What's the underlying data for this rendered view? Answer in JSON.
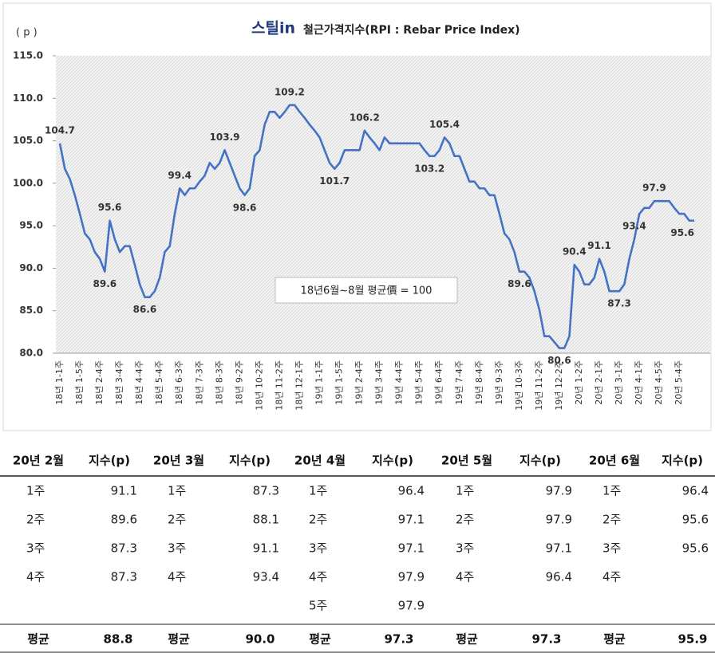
{
  "chart_data": {
    "type": "line",
    "logo": "스틸in",
    "title": "철근가격지수(RPI : Rebar Price Index)",
    "y_label": "( p )",
    "annotation": "18년6월~8월 평균價 = 100",
    "color": "#4472c4",
    "ylim": [
      80,
      115
    ],
    "yticks": [
      {
        "value": 80,
        "label": "80.0"
      },
      {
        "value": 85,
        "label": "85.0"
      },
      {
        "value": 90,
        "label": "90.0"
      },
      {
        "value": 95,
        "label": "95.0"
      },
      {
        "value": 100,
        "label": "100.0"
      },
      {
        "value": 105,
        "label": "105.0"
      },
      {
        "value": 110,
        "label": "110.0"
      },
      {
        "value": 115,
        "label": "115.0"
      }
    ],
    "categories": [
      "18년 1-1주",
      null,
      null,
      null,
      "18년 1-5주",
      null,
      null,
      null,
      "18년 2-4주",
      null,
      null,
      null,
      "18년 3-4주",
      null,
      null,
      null,
      "18년 4-4주",
      null,
      null,
      null,
      "18년 5-4주",
      null,
      null,
      null,
      "18년 6-3주",
      null,
      null,
      null,
      "18년 7-3주",
      null,
      null,
      null,
      "18년 8-3주",
      null,
      null,
      null,
      "18년 9-2주",
      null,
      null,
      null,
      "18년 10-2주",
      null,
      null,
      null,
      "18년 11-2주",
      null,
      null,
      null,
      "18년 12-1주",
      null,
      null,
      null,
      "19년 1-1주",
      null,
      null,
      null,
      "19년 1-5주",
      null,
      null,
      null,
      "19년 2-4주",
      null,
      null,
      null,
      "19년 3-4주",
      null,
      null,
      null,
      "19년 4-4주",
      null,
      null,
      null,
      "19년 5-4주",
      null,
      null,
      null,
      "19년 6-4주",
      null,
      null,
      null,
      "19년 7-4주",
      null,
      null,
      null,
      "19년 8-4주",
      null,
      null,
      null,
      "19년 9-3주",
      null,
      null,
      null,
      "19년 10-3주",
      null,
      null,
      null,
      "19년 11-2주",
      null,
      null,
      null,
      "19년 12-2주",
      null,
      null,
      null,
      "20년 1-2주",
      null,
      null,
      null,
      "20년 2-1주",
      null,
      null,
      null,
      "20년 3-1주",
      null,
      null,
      null,
      "20년 4-1주",
      null,
      null,
      null,
      "20년 4-5주",
      null,
      null,
      null,
      "20년 5-4주",
      null,
      null,
      null
    ],
    "values": [
      104.7,
      101.7,
      100.5,
      98.6,
      96.4,
      94.1,
      93.4,
      91.9,
      91.1,
      89.6,
      95.6,
      93.4,
      91.9,
      92.6,
      92.6,
      90.4,
      88.1,
      86.6,
      86.6,
      87.3,
      88.9,
      91.9,
      92.6,
      96.4,
      99.4,
      98.6,
      99.4,
      99.4,
      100.2,
      100.9,
      102.4,
      101.7,
      102.4,
      103.9,
      102.4,
      100.9,
      99.4,
      98.6,
      99.4,
      103.2,
      103.9,
      106.9,
      108.4,
      108.4,
      107.7,
      108.4,
      109.2,
      109.2,
      108.4,
      107.7,
      106.9,
      106.2,
      105.4,
      103.9,
      102.4,
      101.7,
      102.4,
      103.9,
      103.9,
      103.9,
      103.9,
      106.2,
      105.4,
      104.7,
      103.9,
      105.4,
      104.7,
      104.7,
      104.7,
      104.7,
      104.7,
      104.7,
      104.7,
      103.9,
      103.2,
      103.2,
      103.9,
      105.4,
      104.7,
      103.2,
      103.2,
      101.7,
      100.2,
      100.2,
      99.4,
      99.4,
      98.6,
      98.6,
      96.4,
      94.1,
      93.4,
      91.9,
      89.6,
      89.6,
      88.9,
      87.3,
      85.1,
      82.0,
      82.0,
      81.3,
      80.6,
      80.6,
      82.0,
      90.4,
      89.6,
      88.1,
      88.1,
      88.9,
      91.1,
      89.6,
      87.3,
      87.3,
      87.3,
      88.1,
      91.1,
      93.4,
      96.4,
      97.1,
      97.1,
      97.9,
      97.9,
      97.9,
      97.9,
      97.1,
      96.4,
      96.4,
      95.6,
      95.6
    ],
    "value_labels": [
      "104.7",
      null,
      null,
      null,
      null,
      null,
      null,
      null,
      null,
      "89.6",
      "95.6",
      null,
      null,
      null,
      null,
      null,
      null,
      "86.6",
      null,
      null,
      null,
      null,
      null,
      null,
      "99.4",
      null,
      null,
      null,
      null,
      null,
      null,
      null,
      null,
      "103.9",
      null,
      null,
      null,
      "98.6",
      null,
      null,
      null,
      null,
      null,
      null,
      null,
      null,
      "109.2",
      null,
      null,
      null,
      null,
      null,
      null,
      null,
      null,
      "101.7",
      null,
      null,
      null,
      null,
      null,
      "106.2",
      null,
      null,
      null,
      null,
      null,
      null,
      null,
      null,
      null,
      null,
      null,
      null,
      "103.2",
      null,
      null,
      "105.4",
      null,
      null,
      null,
      null,
      null,
      null,
      null,
      null,
      null,
      null,
      null,
      null,
      null,
      null,
      "89.6",
      null,
      null,
      null,
      null,
      null,
      null,
      null,
      "80.6",
      null,
      null,
      "90.4",
      null,
      null,
      null,
      null,
      "91.1",
      null,
      null,
      null,
      "87.3",
      null,
      null,
      "93.4",
      null,
      null,
      null,
      "97.9",
      null,
      null,
      null,
      null,
      null,
      null,
      null,
      "95.6"
    ]
  },
  "table": {
    "columns": [
      "20년 2월",
      "지수(p)",
      "20년 3월",
      "지수(p)",
      "20년 4월",
      "지수(p)",
      "20년 5월",
      "지수(p)",
      "20년 6월",
      "지수(p)"
    ],
    "rows": [
      [
        "1주",
        "91.1",
        "1주",
        "87.3",
        "1주",
        "96.4",
        "1주",
        "97.9",
        "1주",
        "96.4"
      ],
      [
        "2주",
        "89.6",
        "2주",
        "88.1",
        "2주",
        "97.1",
        "2주",
        "97.9",
        "2주",
        "95.6"
      ],
      [
        "3주",
        "87.3",
        "3주",
        "91.1",
        "3주",
        "97.1",
        "3주",
        "97.1",
        "3주",
        "95.6"
      ],
      [
        "4주",
        "87.3",
        "4주",
        "93.4",
        "4주",
        "97.9",
        "4주",
        "96.4",
        "4주",
        null
      ],
      [
        null,
        null,
        null,
        null,
        "5주",
        "97.9",
        null,
        null,
        null,
        null
      ]
    ],
    "footer": [
      "평균",
      "88.8",
      "평균",
      "90.0",
      "평균",
      "97.3",
      "평균",
      "97.3",
      "평균",
      "95.9"
    ]
  }
}
